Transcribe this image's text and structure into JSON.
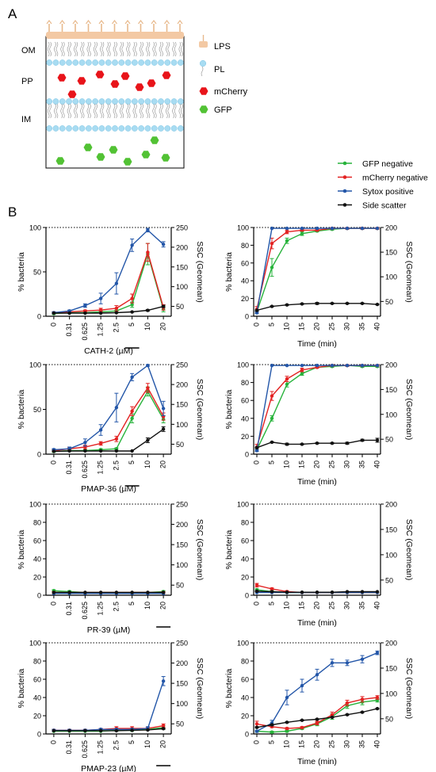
{
  "panel_labels": {
    "a": "A",
    "b": "B"
  },
  "schematic": {
    "layers": [
      "OM",
      "PP",
      "IM"
    ],
    "legend": [
      {
        "label": "LPS",
        "icon": "lps-icon"
      },
      {
        "label": "PL",
        "icon": "phospholipid-icon"
      },
      {
        "label": "mCherry",
        "icon": "mcherry-hexagon-icon"
      },
      {
        "label": "GFP",
        "icon": "gfp-hexagon-icon"
      }
    ],
    "colors": {
      "lps": "#f3c9a4",
      "pl": "#a8dcf2",
      "mcherry": "#e8141a",
      "gfp": "#52c234"
    }
  },
  "legend": [
    {
      "name": "GFP negative",
      "color": "#27b33b"
    },
    {
      "name": "mCherry negative",
      "color": "#e32222"
    },
    {
      "name": "Sytox positive",
      "color": "#2356a8"
    },
    {
      "name": "Side scatter",
      "color": "#111111"
    }
  ],
  "chart_data": [
    {
      "type": "line",
      "panel": "CATH-2 concentration",
      "xlabel": "CATH-2 (µM)",
      "ylabel": "% bacteria",
      "y2label": "SSC (Geomean)",
      "categories": [
        "0",
        "0.31",
        "0.625",
        "1.25",
        "2.5",
        "5",
        "10",
        "20"
      ],
      "underlined_category": "5",
      "ylim": [
        0,
        100
      ],
      "yticks": [
        0,
        50,
        100
      ],
      "y2lim": [
        25,
        250
      ],
      "y2ticks": [
        50,
        100,
        150,
        200,
        250
      ],
      "series": [
        {
          "name": "GFP negative",
          "values": [
            3,
            4,
            4,
            5,
            6,
            13,
            70,
            8
          ],
          "errors": [
            1,
            1,
            1,
            1,
            1,
            3,
            12,
            3
          ]
        },
        {
          "name": "mCherry negative",
          "values": [
            4,
            5,
            6,
            7,
            9,
            20,
            72,
            10
          ],
          "errors": [
            1,
            1,
            1,
            2,
            3,
            5,
            10,
            3
          ]
        },
        {
          "name": "Sytox positive",
          "values": [
            4,
            6,
            12,
            20,
            37,
            80,
            97,
            81
          ],
          "errors": [
            1,
            1,
            2,
            6,
            12,
            7,
            2,
            3
          ]
        },
        {
          "name": "Side scatter",
          "values": [
            33,
            33,
            33,
            33,
            34,
            36,
            40,
            50
          ],
          "errors": [
            0,
            0,
            0,
            0,
            0,
            1,
            2,
            3
          ],
          "axis": "y2"
        }
      ]
    },
    {
      "type": "line",
      "panel": "CATH-2 time",
      "xlabel": "Time (min)",
      "ylabel": "% bacteria",
      "y2label": "SSC (Geomean)",
      "x": [
        0,
        5,
        10,
        15,
        20,
        25,
        30,
        35,
        40
      ],
      "xlim": [
        0,
        40
      ],
      "ylim": [
        0,
        100
      ],
      "yticks": [
        0,
        20,
        40,
        60,
        80,
        100
      ],
      "y2lim": [
        20,
        200
      ],
      "y2ticks": [
        50,
        100,
        150,
        200
      ],
      "series": [
        {
          "name": "GFP negative",
          "values": [
            5,
            55,
            85,
            93,
            96,
            98,
            99,
            99,
            99
          ],
          "errors": [
            2,
            10,
            3,
            2,
            1,
            1,
            1,
            1,
            1
          ]
        },
        {
          "name": "mCherry negative",
          "values": [
            8,
            82,
            95,
            97,
            97,
            99,
            99,
            99,
            99
          ],
          "errors": [
            3,
            6,
            2,
            1,
            1,
            1,
            1,
            1,
            1
          ]
        },
        {
          "name": "Sytox positive",
          "values": [
            4,
            99,
            99,
            99,
            99,
            99,
            99,
            99,
            99
          ],
          "errors": [
            1,
            0,
            0,
            0,
            0,
            0,
            0,
            0,
            0
          ]
        },
        {
          "name": "Side scatter",
          "values": [
            32,
            40,
            43,
            45,
            46,
            46,
            46,
            46,
            44
          ],
          "errors": [
            1,
            1,
            1,
            1,
            2,
            1,
            1,
            1,
            1
          ],
          "axis": "y2"
        }
      ]
    },
    {
      "type": "line",
      "panel": "PMAP-36 concentration",
      "xlabel": "PMAP-36 (µM)",
      "ylabel": "% bacteria",
      "y2label": "SSC (Geomean)",
      "categories": [
        "0",
        "0.31",
        "0.625",
        "1.25",
        "2.5",
        "5",
        "10",
        "20"
      ],
      "underlined_category": "5",
      "ylim": [
        0,
        100
      ],
      "yticks": [
        0,
        50,
        100
      ],
      "y2lim": [
        25,
        250
      ],
      "y2ticks": [
        50,
        100,
        150,
        200,
        250
      ],
      "series": [
        {
          "name": "GFP negative",
          "values": [
            3,
            4,
            4,
            5,
            6,
            40,
            70,
            39
          ],
          "errors": [
            1,
            1,
            1,
            1,
            1,
            5,
            5,
            4
          ]
        },
        {
          "name": "mCherry negative",
          "values": [
            4,
            6,
            8,
            12,
            17,
            48,
            74,
            42
          ],
          "errors": [
            1,
            1,
            2,
            2,
            3,
            5,
            5,
            4
          ]
        },
        {
          "name": "Sytox positive",
          "values": [
            5,
            6,
            13,
            27,
            52,
            86,
            99,
            51
          ],
          "errors": [
            1,
            2,
            4,
            6,
            16,
            4,
            1,
            8
          ]
        },
        {
          "name": "Side scatter",
          "values": [
            32,
            33,
            33,
            33,
            33,
            33,
            60,
            88
          ],
          "errors": [
            0,
            0,
            0,
            0,
            0,
            0,
            6,
            6
          ],
          "axis": "y2"
        }
      ]
    },
    {
      "type": "line",
      "panel": "PMAP-36 time",
      "xlabel": "Time (min)",
      "ylabel": "% bacteria",
      "y2label": "SSC (Geomean)",
      "x": [
        0,
        5,
        10,
        15,
        20,
        25,
        30,
        35,
        40
      ],
      "xlim": [
        0,
        40
      ],
      "ylim": [
        0,
        100
      ],
      "yticks": [
        0,
        20,
        40,
        60,
        80,
        100
      ],
      "y2lim": [
        20,
        200
      ],
      "y2ticks": [
        50,
        100,
        150,
        200
      ],
      "series": [
        {
          "name": "GFP negative",
          "values": [
            5,
            40,
            78,
            90,
            97,
            98,
            99,
            98,
            98
          ],
          "errors": [
            2,
            3,
            3,
            2,
            1,
            1,
            1,
            1,
            1
          ]
        },
        {
          "name": "mCherry negative",
          "values": [
            8,
            65,
            84,
            94,
            97,
            99,
            99,
            99,
            99
          ],
          "errors": [
            3,
            5,
            3,
            2,
            1,
            1,
            1,
            1,
            1
          ]
        },
        {
          "name": "Sytox positive",
          "values": [
            4,
            99,
            99,
            99,
            99,
            99,
            99,
            99,
            99
          ],
          "errors": [
            1,
            0,
            0,
            0,
            0,
            0,
            0,
            0,
            0
          ]
        },
        {
          "name": "Side scatter",
          "values": [
            33,
            44,
            40,
            40,
            42,
            42,
            42,
            48,
            48
          ],
          "errors": [
            1,
            1,
            2,
            1,
            1,
            1,
            2,
            2,
            4
          ],
          "axis": "y2"
        }
      ]
    },
    {
      "type": "line",
      "panel": "PR-39 concentration",
      "xlabel": "PR-39 (µM)",
      "ylabel": "% bacteria",
      "y2label": "SSC (Geomean)",
      "categories": [
        "0",
        "0.31",
        "0.625",
        "1.25",
        "2.5",
        "5",
        "10",
        "20"
      ],
      "underlined_category": "20",
      "ylim": [
        0,
        100
      ],
      "yticks": [
        0,
        20,
        40,
        60,
        80,
        100
      ],
      "y2lim": [
        25,
        250
      ],
      "y2ticks": [
        50,
        100,
        150,
        200,
        250
      ],
      "series": [
        {
          "name": "GFP negative",
          "values": [
            5,
            4,
            3,
            3,
            3,
            3,
            3,
            4
          ],
          "errors": [
            1,
            1,
            0,
            0,
            0,
            0,
            0,
            1
          ]
        },
        {
          "name": "mCherry negative",
          "values": [
            3,
            3,
            3,
            3,
            3,
            3,
            3,
            3
          ],
          "errors": [
            1,
            0,
            0,
            0,
            0,
            0,
            0,
            1
          ]
        },
        {
          "name": "Sytox positive",
          "values": [
            2,
            2,
            2,
            2,
            2,
            2,
            2,
            2
          ],
          "errors": [
            0,
            0,
            0,
            0,
            0,
            0,
            0,
            0
          ]
        },
        {
          "name": "Side scatter",
          "values": [
            32,
            32,
            32,
            32,
            32,
            32,
            32,
            32
          ],
          "errors": [
            0,
            0,
            0,
            0,
            0,
            0,
            0,
            0
          ],
          "axis": "y2"
        }
      ]
    },
    {
      "type": "line",
      "panel": "PR-39 time",
      "xlabel": "Time (min)",
      "ylabel": "% bacteria",
      "y2label": "SSC (Geomean)",
      "x": [
        0,
        5,
        10,
        15,
        20,
        25,
        30,
        35,
        40
      ],
      "xlim": [
        0,
        40
      ],
      "ylim": [
        0,
        100
      ],
      "yticks": [
        0,
        20,
        40,
        60,
        80,
        100
      ],
      "y2lim": [
        20,
        200
      ],
      "y2ticks": [
        50,
        100,
        150,
        200
      ],
      "series": [
        {
          "name": "GFP negative",
          "values": [
            6,
            4,
            3,
            3,
            3,
            3,
            3,
            3,
            3
          ],
          "errors": [
            1,
            1,
            0,
            0,
            0,
            0,
            0,
            0,
            0
          ]
        },
        {
          "name": "mCherry negative",
          "values": [
            11,
            7,
            4,
            3,
            3,
            3,
            3,
            3,
            3
          ],
          "errors": [
            2,
            1,
            1,
            0,
            0,
            0,
            0,
            0,
            0
          ]
        },
        {
          "name": "Sytox positive",
          "values": [
            3,
            3,
            3,
            3,
            3,
            3,
            3,
            3,
            3
          ],
          "errors": [
            0,
            0,
            0,
            0,
            0,
            0,
            0,
            0,
            0
          ]
        },
        {
          "name": "Side scatter",
          "values": [
            28,
            27,
            26,
            26,
            26,
            26,
            27,
            27,
            27
          ],
          "errors": [
            1,
            0,
            0,
            0,
            0,
            0,
            0,
            0,
            0
          ],
          "axis": "y2"
        }
      ]
    },
    {
      "type": "line",
      "panel": "PMAP-23 concentration",
      "xlabel": "PMAP-23 (µM)",
      "ylabel": "% bacteria",
      "y2label": "SSC (Geomean)",
      "categories": [
        "0",
        "0.31",
        "0.625",
        "1.25",
        "2.5",
        "5",
        "10",
        "20"
      ],
      "underlined_category": "20",
      "ylim": [
        0,
        100
      ],
      "yticks": [
        0,
        20,
        40,
        60,
        80,
        100
      ],
      "y2lim": [
        25,
        250
      ],
      "y2ticks": [
        50,
        100,
        150,
        200,
        250
      ],
      "series": [
        {
          "name": "GFP negative",
          "values": [
            3,
            3,
            3,
            3,
            4,
            4,
            5,
            7
          ],
          "errors": [
            0,
            0,
            0,
            0,
            1,
            1,
            1,
            2
          ]
        },
        {
          "name": "mCherry negative",
          "values": [
            4,
            4,
            4,
            5,
            6,
            6,
            6,
            9
          ],
          "errors": [
            1,
            1,
            1,
            1,
            2,
            2,
            1,
            2
          ]
        },
        {
          "name": "Sytox positive",
          "values": [
            4,
            4,
            4,
            5,
            5,
            5,
            6,
            58
          ],
          "errors": [
            1,
            1,
            1,
            1,
            1,
            1,
            2,
            5
          ]
        },
        {
          "name": "Side scatter",
          "values": [
            33,
            33,
            33,
            33,
            33,
            34,
            35,
            38
          ],
          "errors": [
            0,
            0,
            0,
            0,
            0,
            0,
            0,
            1
          ],
          "axis": "y2"
        }
      ]
    },
    {
      "type": "line",
      "panel": "PMAP-23 time",
      "xlabel": "Time (min)",
      "ylabel": "% bacteria",
      "y2label": "SSC (Geomean)",
      "x": [
        0,
        5,
        10,
        15,
        20,
        25,
        30,
        35,
        40
      ],
      "xlim": [
        0,
        40
      ],
      "ylim": [
        0,
        100
      ],
      "yticks": [
        0,
        20,
        40,
        60,
        80,
        100
      ],
      "y2lim": [
        20,
        200
      ],
      "y2ticks": [
        50,
        100,
        150,
        200
      ],
      "series": [
        {
          "name": "GFP negative",
          "values": [
            3,
            2,
            3,
            6,
            11,
            19,
            31,
            35,
            37
          ],
          "errors": [
            1,
            1,
            1,
            1,
            2,
            3,
            3,
            3,
            2
          ]
        },
        {
          "name": "mCherry negative",
          "values": [
            11,
            8,
            6,
            7,
            12,
            21,
            34,
            38,
            40
          ],
          "errors": [
            3,
            1,
            1,
            1,
            2,
            3,
            3,
            3,
            2
          ]
        },
        {
          "name": "Sytox positive",
          "values": [
            3,
            12,
            40,
            53,
            65,
            78,
            78,
            82,
            89
          ],
          "errors": [
            1,
            3,
            8,
            7,
            6,
            4,
            3,
            4,
            2
          ]
        },
        {
          "name": "Side scatter",
          "values": [
            33,
            38,
            43,
            47,
            49,
            53,
            58,
            63,
            70
          ],
          "errors": [
            1,
            1,
            1,
            1,
            1,
            1,
            1,
            1,
            1
          ],
          "axis": "y2"
        }
      ]
    }
  ]
}
